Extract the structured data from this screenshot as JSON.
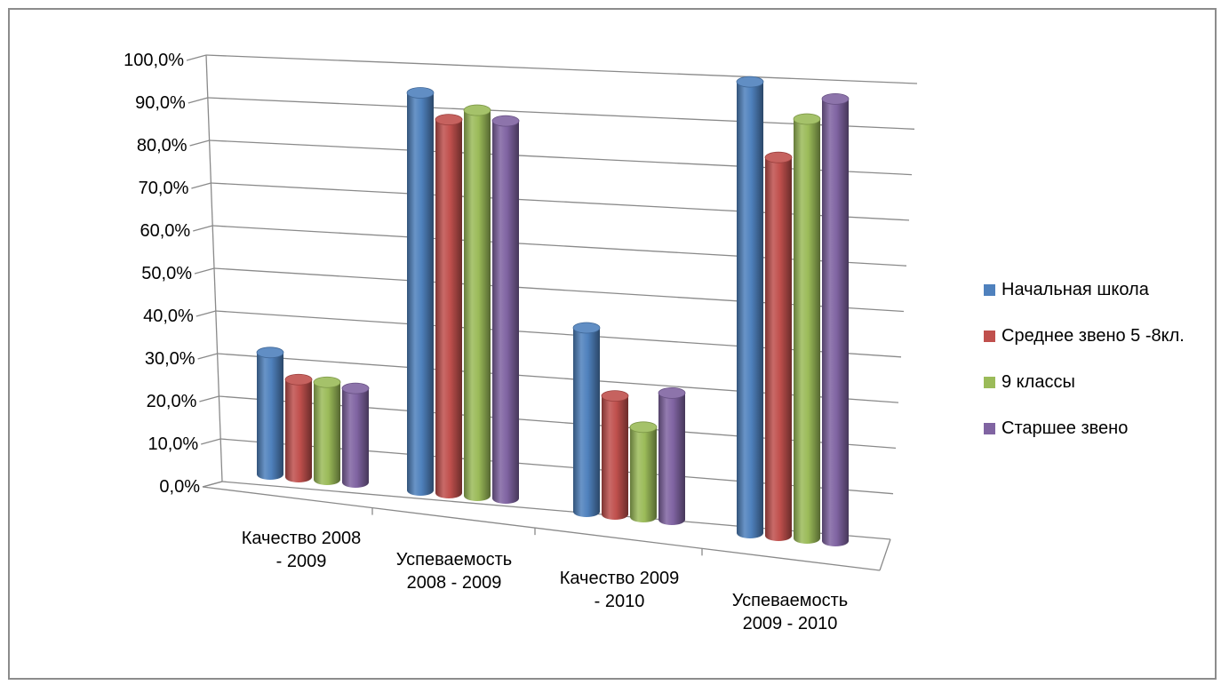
{
  "chart_data": {
    "type": "bar",
    "style": "3d-cylinder",
    "categories": [
      [
        "Качество 2008",
        "- 2009"
      ],
      [
        "Успеваемость",
        "2008 - 2009"
      ],
      [
        "Качество 2009",
        "- 2010"
      ],
      [
        "Успеваемость",
        "2009 - 2010"
      ]
    ],
    "series": [
      {
        "name": "Начальная школа",
        "color": "#4F81BD",
        "values": [
          35.0,
          99.0,
          45.0,
          99.0
        ]
      },
      {
        "name": "Среднее звено 5 -8кл.",
        "color": "#C0504D",
        "values": [
          28.0,
          93.0,
          29.0,
          83.0
        ]
      },
      {
        "name": "9 классы",
        "color": "#9BBB59",
        "values": [
          28.0,
          96.0,
          22.0,
          92.0
        ]
      },
      {
        "name": "Старшее звено",
        "color": "#8064A2",
        "values": [
          27.0,
          94.0,
          31.0,
          97.0
        ]
      }
    ],
    "y_ticks": [
      "0,0%",
      "10,0%",
      "20,0%",
      "30,0%",
      "40,0%",
      "50,0%",
      "60,0%",
      "70,0%",
      "80,0%",
      "90,0%",
      "100,0%"
    ],
    "ylim": [
      0,
      100
    ],
    "grid": true,
    "legend_position": "right"
  }
}
